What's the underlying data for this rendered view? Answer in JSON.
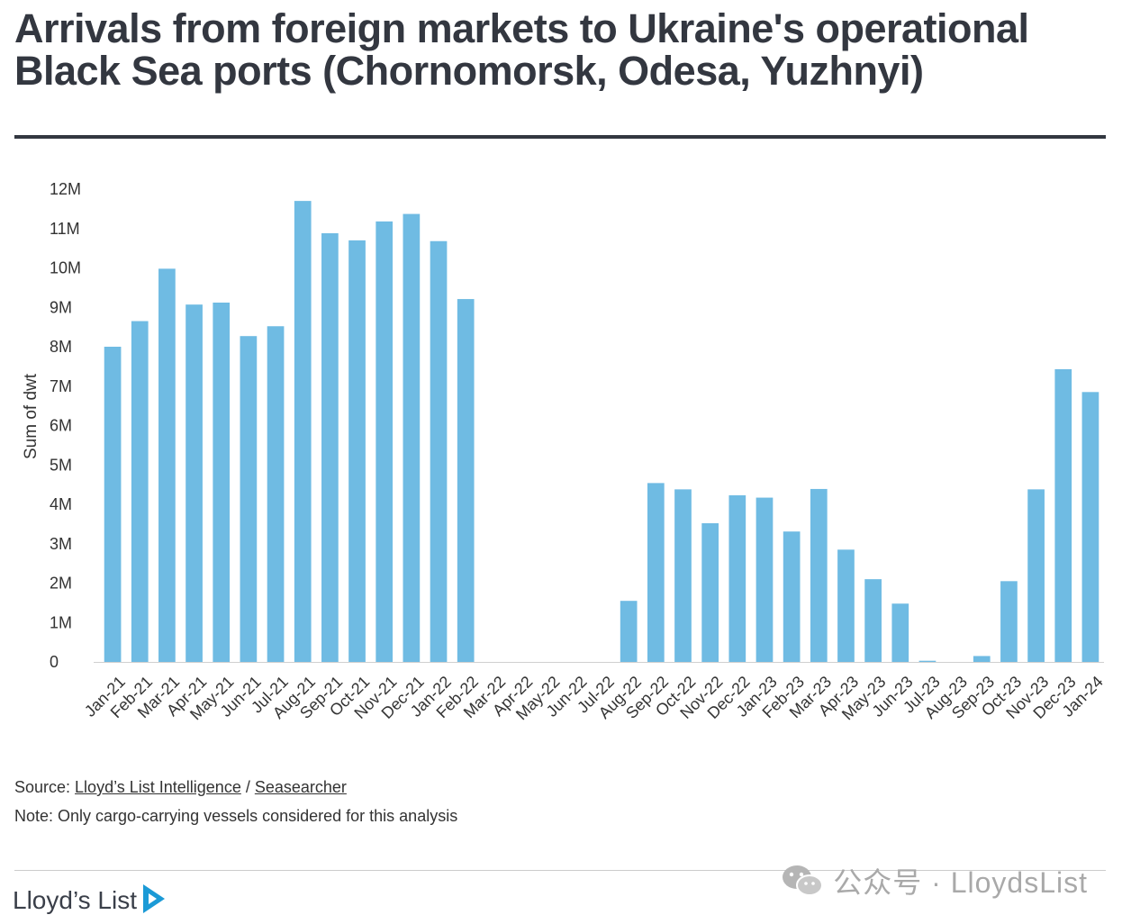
{
  "header": {
    "title": "Arrivals from foreign markets to Ukraine's operational Black Sea ports (Chornomorsk, Odesa, Yuzhnyi)"
  },
  "chart_data": {
    "type": "bar",
    "title": "",
    "xlabel": "",
    "ylabel": "Sum of dwt",
    "ylim": [
      0,
      12000000
    ],
    "yticks": [
      0,
      1000000,
      2000000,
      3000000,
      4000000,
      5000000,
      6000000,
      7000000,
      8000000,
      9000000,
      10000000,
      11000000,
      12000000
    ],
    "ytick_labels": [
      "0",
      "1M",
      "2M",
      "3M",
      "4M",
      "5M",
      "6M",
      "7M",
      "8M",
      "9M",
      "10M",
      "11M",
      "12M"
    ],
    "grid": false,
    "bar_color": "#6fbbe3",
    "categories": [
      "Jan-21",
      "Feb-21",
      "Mar-21",
      "Apr-21",
      "May-21",
      "Jun-21",
      "Jul-21",
      "Aug-21",
      "Sep-21",
      "Oct-21",
      "Nov-21",
      "Dec-21",
      "Jan-22",
      "Feb-22",
      "Mar-22",
      "Apr-22",
      "May-22",
      "Jun-22",
      "Jul-22",
      "Aug-22",
      "Sep-22",
      "Oct-22",
      "Nov-22",
      "Dec-22",
      "Jan-23",
      "Feb-23",
      "Mar-23",
      "Apr-23",
      "May-23",
      "Jun-23",
      "Jul-23",
      "Aug-23",
      "Sep-23",
      "Oct-23",
      "Nov-23",
      "Dec-23",
      "Jan-24"
    ],
    "values": [
      8000000,
      8650000,
      9980000,
      9070000,
      9120000,
      8270000,
      8520000,
      11700000,
      10880000,
      10700000,
      11180000,
      11370000,
      10680000,
      9210000,
      0,
      0,
      0,
      0,
      0,
      1550000,
      4540000,
      4380000,
      3520000,
      4230000,
      4170000,
      3310000,
      4390000,
      2850000,
      2100000,
      1480000,
      30000,
      0,
      150000,
      2050000,
      4380000,
      7430000,
      6850000
    ]
  },
  "footer": {
    "source_prefix": "Source: ",
    "source_link1": "Lloyd’s List Intelligence",
    "source_sep": " / ",
    "source_link2": "Seasearcher",
    "note": "Note: Only cargo-carrying vessels considered for this analysis",
    "brand": "Lloyd’s List",
    "watermark": "公众号 · LloydsList",
    "brand_color": "#1b9ad6"
  }
}
